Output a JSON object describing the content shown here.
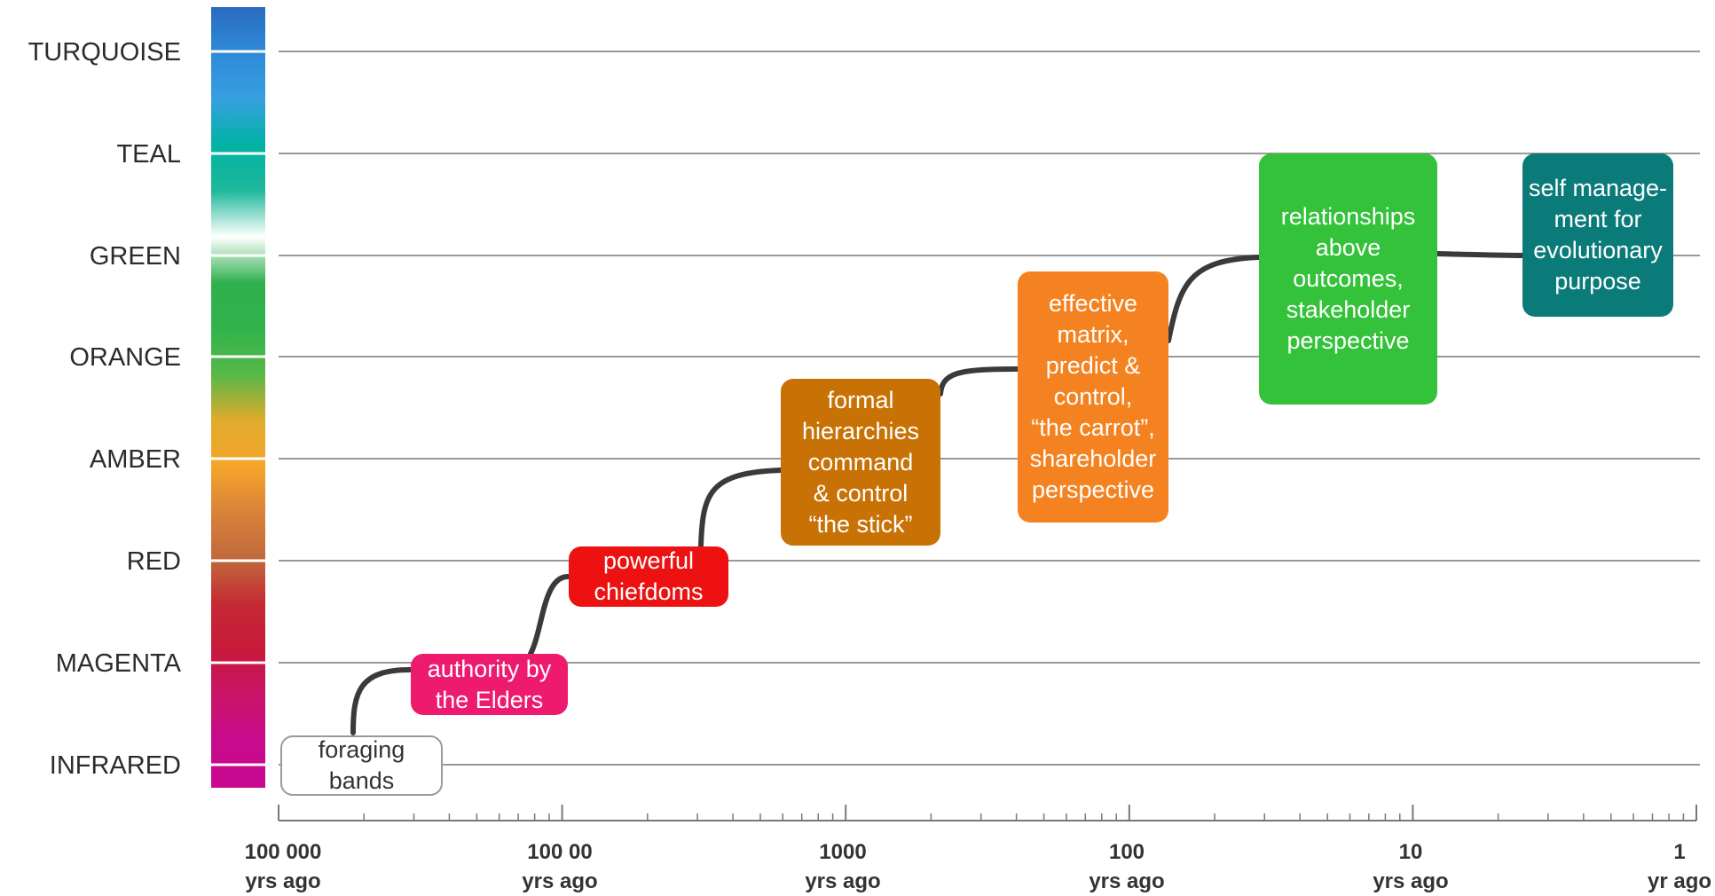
{
  "levels": [
    {
      "name": "TURQUOISE"
    },
    {
      "name": "TEAL"
    },
    {
      "name": "GREEN"
    },
    {
      "name": "ORANGE"
    },
    {
      "name": "AMBER"
    },
    {
      "name": "RED"
    },
    {
      "name": "MAGENTA"
    },
    {
      "name": "INFRARED"
    }
  ],
  "stages": [
    {
      "label": "foraging\nbands",
      "fill": "#ffffff",
      "text_color": "#333333",
      "border": "#9a9a9a"
    },
    {
      "label": "authority by\nthe Elders",
      "fill": "#ee1a6e",
      "text_color": "#ffffff"
    },
    {
      "label": "powerful\nchiefdoms",
      "fill": "#ee1111",
      "text_color": "#ffffff"
    },
    {
      "label": "formal\nhierarchies\ncommand\n& control\n“the stick”",
      "fill": "#c87206",
      "text_color": "#ffffff"
    },
    {
      "label": "effective\nmatrix,\npredict &\ncontrol,\n“the carrot”,\nshareholder\nperspective",
      "fill": "#f58220",
      "text_color": "#ffffff"
    },
    {
      "label": "relationships\nabove\noutcomes,\nstakeholder\nperspective",
      "fill": "#33c23a",
      "text_color": "#ffffff"
    },
    {
      "label": "self manage-\nment for\nevolutionary\npurpose",
      "fill": "#0b7b7a",
      "text_color": "#ffffff"
    }
  ],
  "time_axis": {
    "ticks": [
      {
        "value": "100 000",
        "unit": "yrs ago"
      },
      {
        "value": "100 00",
        "unit": "yrs ago"
      },
      {
        "value": "1000",
        "unit": "yrs ago"
      },
      {
        "value": "100",
        "unit": "yrs ago"
      },
      {
        "value": "10",
        "unit": "yrs ago"
      },
      {
        "value": "1",
        "unit": "yr ago"
      }
    ]
  },
  "colors": {
    "gridline": "#777777",
    "axis": "#777777",
    "curve": "#3a3a3a",
    "spectrum": [
      "#2a6bbf",
      "#2f8ad8",
      "#36a0e0",
      "#00b3a4",
      "#1fb89a",
      "#ffffff",
      "#2fb04f",
      "#31b34b",
      "#57b848",
      "#e0ab2c",
      "#f5a52a",
      "#d9823a",
      "#c06a3c",
      "#c52a34",
      "#c8193b",
      "#c91469",
      "#c80a8e",
      "#c8088f"
    ]
  }
}
